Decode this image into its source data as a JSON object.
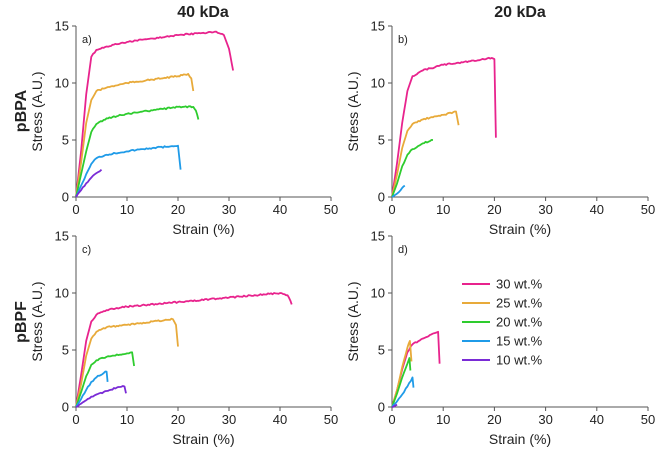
{
  "figure": {
    "column_headers": [
      "40 kDa",
      "20 kDa"
    ],
    "row_headers": [
      "pBPA",
      "pBPF"
    ]
  },
  "legend": {
    "entries": [
      {
        "label": "30 wt.%",
        "color": "#e8238d"
      },
      {
        "label": "25 wt.%",
        "color": "#e8aa3a"
      },
      {
        "label": "20 wt.%",
        "color": "#2ecc2e"
      },
      {
        "label": "15 wt.%",
        "color": "#1f9be8"
      },
      {
        "label": "10 wt.%",
        "color": "#7a2bd6"
      }
    ]
  },
  "chart_data": [
    {
      "type": "line",
      "panel_label": "a)",
      "xlabel": "Strain (%)",
      "ylabel": "Stress (A.U.)",
      "xlim": [
        0,
        50
      ],
      "ylim": [
        0,
        15
      ],
      "xticks": [
        "0",
        "10",
        "20",
        "30",
        "40",
        "50"
      ],
      "yticks": [
        "0",
        "5",
        "10",
        "15"
      ],
      "series": [
        {
          "name": "30 wt.%",
          "color": "#e8238d",
          "x": [
            0,
            1,
            2,
            3,
            4,
            6,
            10,
            15,
            20,
            25,
            27.5,
            29,
            30,
            30.8
          ],
          "y": [
            0,
            4,
            9,
            12.3,
            12.9,
            13.2,
            13.6,
            13.9,
            14.2,
            14.4,
            14.5,
            14.2,
            13,
            11.1
          ]
        },
        {
          "name": "25 wt.%",
          "color": "#e8aa3a",
          "x": [
            0,
            1,
            2,
            3,
            4,
            6,
            10,
            15,
            20,
            22,
            22.6,
            23
          ],
          "y": [
            0,
            3,
            6.5,
            8.5,
            9.3,
            9.6,
            10,
            10.3,
            10.6,
            10.8,
            10.4,
            9.3
          ]
        },
        {
          "name": "20 wt.%",
          "color": "#2ecc2e",
          "x": [
            0,
            1,
            2,
            3,
            4,
            6,
            10,
            15,
            20,
            23,
            23.5,
            24
          ],
          "y": [
            0,
            2,
            4,
            5.7,
            6.4,
            6.9,
            7.3,
            7.6,
            7.9,
            7.9,
            7.6,
            6.8
          ]
        },
        {
          "name": "15 wt.%",
          "color": "#1f9be8",
          "x": [
            0,
            1,
            2,
            3,
            4,
            6,
            10,
            15,
            20,
            20.5
          ],
          "y": [
            0,
            1,
            2,
            2.9,
            3.4,
            3.7,
            4,
            4.3,
            4.5,
            2.4
          ]
        },
        {
          "name": "10 wt.%",
          "color": "#7a2bd6",
          "x": [
            0,
            1,
            2,
            3,
            4,
            5
          ],
          "y": [
            0,
            0.6,
            1.2,
            1.7,
            2.1,
            2.4
          ]
        }
      ]
    },
    {
      "type": "line",
      "panel_label": "b)",
      "xlabel": "Strain (%)",
      "ylabel": "Stress (A.U.)",
      "xlim": [
        0,
        50
      ],
      "ylim": [
        0,
        15
      ],
      "xticks": [
        "0",
        "10",
        "20",
        "30",
        "40",
        "50"
      ],
      "yticks": [
        "0",
        "5",
        "10",
        "15"
      ],
      "series": [
        {
          "name": "30 wt.%",
          "color": "#e8238d",
          "x": [
            0,
            1,
            2,
            3,
            4,
            6,
            10,
            15,
            19.5,
            20,
            20.3
          ],
          "y": [
            0,
            3,
            6.5,
            9.3,
            10.6,
            11.1,
            11.6,
            11.9,
            12.2,
            12.1,
            5.2
          ]
        },
        {
          "name": "25 wt.%",
          "color": "#e8aa3a",
          "x": [
            0,
            1,
            2,
            3,
            4,
            6,
            10,
            12.5,
            13
          ],
          "y": [
            0,
            2,
            4.3,
            5.8,
            6.4,
            6.8,
            7.2,
            7.5,
            6.3
          ]
        },
        {
          "name": "20 wt.%",
          "color": "#2ecc2e",
          "x": [
            0,
            1,
            2,
            3,
            4,
            6,
            8
          ],
          "y": [
            0,
            1.2,
            2.7,
            3.7,
            4.2,
            4.7,
            5
          ]
        },
        {
          "name": "15 wt.%",
          "color": "#1f9be8",
          "x": [
            0,
            1,
            2,
            2.5
          ],
          "y": [
            0,
            0.3,
            0.8,
            1
          ]
        }
      ]
    },
    {
      "type": "line",
      "panel_label": "c)",
      "xlabel": "Strain (%)",
      "ylabel": "Stress (A.U.)",
      "xlim": [
        0,
        50
      ],
      "ylim": [
        0,
        15
      ],
      "xticks": [
        "0",
        "10",
        "20",
        "30",
        "40",
        "50"
      ],
      "yticks": [
        "0",
        "5",
        "10",
        "15"
      ],
      "series": [
        {
          "name": "30 wt.%",
          "color": "#e8238d",
          "x": [
            0,
            1,
            2,
            3,
            4,
            6,
            10,
            20,
            30,
            40,
            41.5,
            42.3
          ],
          "y": [
            0,
            2.8,
            5.8,
            7.5,
            8.1,
            8.5,
            8.8,
            9.2,
            9.6,
            10,
            9.8,
            9
          ]
        },
        {
          "name": "25 wt.%",
          "color": "#e8aa3a",
          "x": [
            0,
            1,
            2,
            3,
            4,
            6,
            10,
            15,
            19,
            19.6,
            20
          ],
          "y": [
            0,
            2,
            4.5,
            6,
            6.6,
            7,
            7.2,
            7.5,
            7.7,
            7.2,
            5.3
          ]
        },
        {
          "name": "20 wt.%",
          "color": "#2ecc2e",
          "x": [
            0,
            1,
            2,
            3,
            4,
            6,
            10,
            11,
            11.4
          ],
          "y": [
            0,
            1.3,
            2.7,
            3.7,
            4.1,
            4.4,
            4.7,
            4.8,
            3.6
          ]
        },
        {
          "name": "15 wt.%",
          "color": "#1f9be8",
          "x": [
            0,
            1,
            2,
            3,
            4,
            5.5,
            6,
            6.2
          ],
          "y": [
            0,
            0.7,
            1.5,
            2.2,
            2.6,
            3,
            3.1,
            2.2
          ]
        },
        {
          "name": "10 wt.%",
          "color": "#7a2bd6",
          "x": [
            0,
            1,
            2,
            3,
            4,
            6,
            8,
            9.5,
            9.8
          ],
          "y": [
            0,
            0.3,
            0.6,
            0.9,
            1.1,
            1.4,
            1.7,
            1.8,
            1.2
          ]
        }
      ]
    },
    {
      "type": "line",
      "panel_label": "d)",
      "xlabel": "Strain (%)",
      "ylabel": "Stress (A.U.)",
      "xlim": [
        0,
        50
      ],
      "ylim": [
        0,
        15
      ],
      "xticks": [
        "0",
        "10",
        "20",
        "30",
        "40",
        "50"
      ],
      "yticks": [
        "0",
        "5",
        "10",
        "15"
      ],
      "series": [
        {
          "name": "30 wt.%",
          "color": "#e8238d",
          "x": [
            0,
            1,
            2,
            3,
            4,
            6,
            8.5,
            9,
            9.3
          ],
          "y": [
            0,
            1.5,
            3.3,
            4.8,
            5.5,
            6,
            6.5,
            6.6,
            3.8
          ]
        },
        {
          "name": "25 wt.%",
          "color": "#e8aa3a",
          "x": [
            0,
            1,
            2,
            3,
            3.5,
            3.8
          ],
          "y": [
            0,
            1.5,
            3.5,
            5.2,
            5.8,
            4
          ]
        },
        {
          "name": "20 wt.%",
          "color": "#2ecc2e",
          "x": [
            0,
            1,
            2,
            3,
            3.4,
            3.6
          ],
          "y": [
            0,
            1.2,
            2.6,
            3.8,
            4.3,
            3.2
          ]
        },
        {
          "name": "15 wt.%",
          "color": "#1f9be8",
          "x": [
            0,
            1,
            2,
            3,
            4,
            4.2
          ],
          "y": [
            0,
            0.5,
            1.1,
            1.8,
            2.6,
            1.7
          ]
        },
        {
          "name": "10 wt.%",
          "color": "#7a2bd6",
          "x": [
            0,
            0.5,
            1
          ],
          "y": [
            0,
            0.1,
            0.2
          ]
        }
      ]
    }
  ]
}
